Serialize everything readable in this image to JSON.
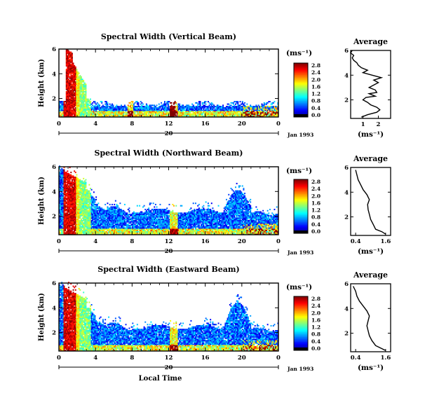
{
  "chart_data": [
    {
      "type": "heatmap",
      "title": "Spectral Width (Vertical Beam)",
      "ylabel": "Height (km)",
      "y_ticks": [
        "2",
        "4",
        "6"
      ],
      "x_ticks": [
        "0",
        "4",
        "8",
        "12",
        "16",
        "20",
        "0"
      ],
      "day_label": "20",
      "date_label": "Jan 1993",
      "xlim": [
        0,
        24
      ],
      "ylim": [
        0.5,
        6
      ],
      "colorbar": {
        "unit": "(ms⁻¹)",
        "ticks": [
          "0.0",
          "0.4",
          "0.8",
          "1.2",
          "1.6",
          "2.0",
          "2.4",
          "2.8"
        ],
        "range": [
          0,
          2.8
        ]
      },
      "profile": {
        "title": "Average",
        "xlabel": "(ms⁻¹)",
        "x_ticks": [
          "1",
          "2"
        ],
        "y_ticks": [
          "2",
          "4",
          "6"
        ],
        "xlim": [
          0.2,
          2.8
        ],
        "points": [
          [
            0.9,
            0.6
          ],
          [
            1.3,
            0.8
          ],
          [
            1.9,
            1.0
          ],
          [
            2.1,
            1.2
          ],
          [
            1.9,
            1.4
          ],
          [
            1.5,
            1.6
          ],
          [
            1.3,
            1.8
          ],
          [
            1.0,
            2.0
          ],
          [
            1.2,
            2.2
          ],
          [
            1.8,
            2.3
          ],
          [
            1.4,
            2.5
          ],
          [
            1.9,
            2.6
          ],
          [
            1.8,
            2.8
          ],
          [
            1.4,
            3.0
          ],
          [
            1.7,
            3.2
          ],
          [
            2.0,
            3.4
          ],
          [
            1.7,
            3.6
          ],
          [
            2.2,
            3.8
          ],
          [
            1.6,
            4.0
          ],
          [
            1.0,
            4.2
          ],
          [
            1.3,
            4.4
          ],
          [
            0.9,
            4.6
          ],
          [
            0.7,
            4.8
          ],
          [
            0.6,
            5.0
          ],
          [
            0.4,
            5.2
          ],
          [
            0.3,
            5.4
          ],
          [
            0.4,
            5.6
          ],
          [
            0.2,
            5.8
          ],
          [
            0.3,
            6.0
          ]
        ]
      }
    },
    {
      "type": "heatmap",
      "title": "Spectral Width (Northward Beam)",
      "ylabel": "Height (km)",
      "y_ticks": [
        "2",
        "4",
        "6"
      ],
      "x_ticks": [
        "0",
        "4",
        "8",
        "12",
        "16",
        "20",
        "0"
      ],
      "day_label": "20",
      "date_label": "Jan 1993",
      "xlim": [
        0,
        24
      ],
      "ylim": [
        0.5,
        6
      ],
      "colorbar": {
        "unit": "(ms⁻¹)",
        "ticks": [
          "0.0",
          "0.4",
          "0.8",
          "1.2",
          "1.6",
          "2.0",
          "2.4",
          "2.8"
        ],
        "range": [
          0,
          2.8
        ]
      },
      "profile": {
        "title": "Average",
        "xlabel": "(ms⁻¹)",
        "x_ticks": [
          "0.4",
          "1.6"
        ],
        "y_ticks": [
          "2",
          "4",
          "6"
        ],
        "xlim": [
          0.2,
          1.8
        ],
        "points": [
          [
            1.6,
            0.6
          ],
          [
            1.45,
            0.8
          ],
          [
            1.2,
            1.0
          ],
          [
            1.1,
            1.4
          ],
          [
            1.0,
            1.8
          ],
          [
            0.95,
            2.2
          ],
          [
            0.9,
            2.6
          ],
          [
            0.88,
            3.0
          ],
          [
            0.95,
            3.4
          ],
          [
            0.85,
            3.8
          ],
          [
            0.7,
            4.2
          ],
          [
            0.6,
            4.6
          ],
          [
            0.5,
            5.0
          ],
          [
            0.45,
            5.4
          ],
          [
            0.4,
            5.8
          ]
        ]
      }
    },
    {
      "type": "heatmap",
      "title": "Spectral Width (Eastward Beam)",
      "ylabel": "Height (km)",
      "y_ticks": [
        "2",
        "4",
        "6"
      ],
      "x_ticks": [
        "0",
        "4",
        "8",
        "12",
        "16",
        "20",
        "0"
      ],
      "day_label": "20",
      "date_label": "Jan 1993",
      "xlabel": "Local Time",
      "xlim": [
        0,
        24
      ],
      "ylim": [
        0.5,
        6
      ],
      "colorbar": {
        "unit": "(ms⁻¹)",
        "ticks": [
          "0.0",
          "0.4",
          "0.8",
          "1.2",
          "1.6",
          "2.0",
          "2.4",
          "2.8"
        ],
        "range": [
          0,
          2.8
        ]
      },
      "profile": {
        "title": "Average",
        "xlabel": "(ms⁻¹)",
        "x_ticks": [
          "0.4",
          "1.6"
        ],
        "y_ticks": [
          "2",
          "4",
          "6"
        ],
        "xlim": [
          0.2,
          1.8
        ],
        "points": [
          [
            1.6,
            0.6
          ],
          [
            1.4,
            0.8
          ],
          [
            1.2,
            1.0
          ],
          [
            1.05,
            1.4
          ],
          [
            0.95,
            1.8
          ],
          [
            0.9,
            2.2
          ],
          [
            0.85,
            2.6
          ],
          [
            0.9,
            3.0
          ],
          [
            0.95,
            3.4
          ],
          [
            0.85,
            3.8
          ],
          [
            0.7,
            4.2
          ],
          [
            0.55,
            4.6
          ],
          [
            0.45,
            5.0
          ],
          [
            0.4,
            5.4
          ],
          [
            0.3,
            5.8
          ]
        ]
      }
    }
  ]
}
